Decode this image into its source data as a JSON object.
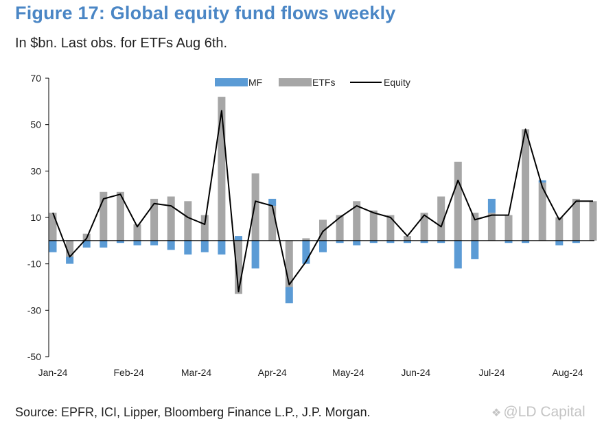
{
  "header": {
    "title": "Figure 17: Global equity fund flows weekly",
    "subtitle": "In $bn. Last obs. for ETFs Aug 6th."
  },
  "footer": {
    "source": "Source: EPFR, ICI, Lipper, Bloomberg Finance L.P., J.P. Morgan.",
    "watermark": "@LD Capital"
  },
  "colors": {
    "mf": "#5b9bd5",
    "etfs": "#a6a6a6",
    "equity": "#000000",
    "title": "#4a86c5"
  },
  "chart_data": {
    "type": "bar",
    "title": "Figure 17: Global equity fund flows weekly",
    "subtitle": "In $bn. Last obs. for ETFs Aug 6th.",
    "xlabel": "",
    "ylabel": "",
    "ylim": [
      -50,
      70
    ],
    "yticks": [
      70,
      50,
      30,
      10,
      -10,
      -30,
      -50
    ],
    "grid": false,
    "legend_position": "top-center",
    "month_labels": [
      {
        "label": "Jan-24",
        "week_index": 0
      },
      {
        "label": "Feb-24",
        "week_index": 4.5
      },
      {
        "label": "Mar-24",
        "week_index": 8.5
      },
      {
        "label": "Apr-24",
        "week_index": 13
      },
      {
        "label": "May-24",
        "week_index": 17.5
      },
      {
        "label": "Jun-24",
        "week_index": 21.5
      },
      {
        "label": "Jul-24",
        "week_index": 26
      },
      {
        "label": "Aug-24",
        "week_index": 30.5
      }
    ],
    "series": [
      {
        "name": "MF",
        "kind": "bar",
        "values": [
          -5,
          -3,
          -3,
          -3,
          -1,
          -2,
          -2,
          -4,
          -6,
          -5,
          -6,
          2,
          -12,
          3,
          -7,
          -10,
          -5,
          -1,
          -2,
          -1,
          -1,
          -1,
          -1,
          -1,
          -12,
          -8,
          6,
          -1,
          -1,
          1,
          -2,
          -1,
          0
        ]
      },
      {
        "name": "ETFs",
        "kind": "bar",
        "values": [
          12,
          -7,
          3,
          21,
          21,
          7,
          18,
          19,
          17,
          11,
          62,
          -23,
          29,
          15,
          -20,
          1,
          9,
          11,
          17,
          13,
          11,
          2,
          12,
          19,
          34,
          12,
          12,
          11,
          48,
          25,
          10,
          18,
          17
        ]
      },
      {
        "name": "Equity",
        "kind": "line",
        "values": [
          12,
          -7,
          1,
          18,
          20,
          6,
          16,
          15,
          10,
          7,
          56,
          -22,
          17,
          15,
          -19,
          -9,
          4,
          10,
          15,
          12,
          10,
          2,
          11,
          6,
          26,
          9,
          11,
          11,
          48,
          23,
          9,
          17,
          17
        ]
      }
    ]
  }
}
